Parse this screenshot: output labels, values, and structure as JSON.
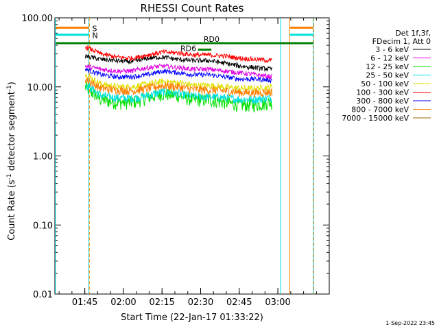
{
  "chart_data": {
    "type": "line",
    "title": "RHESSI Count Rates",
    "xlabel": "Start Time (22-Jan-17 01:33:22)",
    "ylabel_parts": {
      "a": "Count Rate (s",
      "sup1": "-1",
      "b": " detector segment",
      "sup2": "-1",
      "c": ")"
    },
    "y_scale": "log",
    "ylim": [
      0.01,
      100.0
    ],
    "y_ticks": [
      {
        "value": 0.01,
        "label": "0.01"
      },
      {
        "value": 0.1,
        "label": "0.10"
      },
      {
        "value": 1.0,
        "label": "1.00"
      },
      {
        "value": 10.0,
        "label": "10.00"
      },
      {
        "value": 100.0,
        "label": "100.00"
      }
    ],
    "xlim_minutes_after_start": [
      0,
      106.6
    ],
    "x_ticks": [
      {
        "minutes": 11.63,
        "label": "01:45"
      },
      {
        "minutes": 26.63,
        "label": "02:00"
      },
      {
        "minutes": 41.63,
        "label": "02:15"
      },
      {
        "minutes": 56.63,
        "label": "02:30"
      },
      {
        "minutes": 71.63,
        "label": "02:45"
      },
      {
        "minutes": 86.63,
        "label": "03:00"
      }
    ],
    "legend_placement": "right",
    "legend_header": [
      "Det 1f,3f,",
      "FDecim 1, Att 0"
    ],
    "series": [
      {
        "name": "3 - 6 keV",
        "color": "#000000",
        "values": [
          28,
          25,
          24,
          23,
          26,
          27,
          25,
          24,
          24,
          22,
          20,
          19,
          18
        ]
      },
      {
        "name": "6 - 12 keV",
        "color": "#e000e0",
        "values": [
          20,
          18,
          17,
          17,
          19,
          20,
          19,
          18,
          18,
          17,
          16,
          15,
          14
        ]
      },
      {
        "name": "12 - 25 keV",
        "color": "#00e000",
        "values": [
          10,
          6.5,
          6,
          6,
          7,
          8,
          7.5,
          6.5,
          6.5,
          6,
          5.5,
          5.5,
          6
        ]
      },
      {
        "name": "25 - 50 keV",
        "color": "#00e0e0",
        "values": [
          11,
          7.5,
          7,
          6.8,
          7.5,
          8.5,
          8,
          7.3,
          7.2,
          7,
          6.6,
          6.6,
          7
        ]
      },
      {
        "name": "50 - 100 keV",
        "color": "#e0e000",
        "values": [
          15,
          11,
          10,
          10,
          11,
          12,
          11.5,
          10.5,
          10.5,
          10,
          9.5,
          9.5,
          10
        ]
      },
      {
        "name": "100 - 300 keV",
        "color": "#ff0000",
        "values": [
          38,
          30,
          27,
          26,
          29,
          32,
          31,
          29,
          29,
          28,
          26,
          25,
          24
        ]
      },
      {
        "name": "300 - 800 keV",
        "color": "#0000ff",
        "values": [
          18,
          15,
          14,
          14,
          15,
          17,
          16,
          15,
          15,
          14,
          13,
          13,
          12.5
        ]
      },
      {
        "name": "800 - 7000 keV",
        "color": "#ff8000",
        "values": [
          13,
          9.5,
          9,
          8.8,
          9.5,
          10.5,
          10,
          9.2,
          9,
          8.8,
          8.3,
          8.2,
          8.5
        ]
      },
      {
        "name": "7000 - 15000 keV",
        "color": "#a06000",
        "values": []
      }
    ],
    "series_x_minutes": [
      11.8,
      18,
      24,
      30,
      36,
      42,
      48,
      54,
      60,
      66,
      72,
      78,
      84.5
    ],
    "markers": [
      {
        "label": "S",
        "color": "#ff8000",
        "y_value": 72
      },
      {
        "label": "N",
        "color": "#00e0e0",
        "y_value": 57
      }
    ],
    "attenuator_lines": [
      {
        "label": "RD6",
        "y_value": 38
      },
      {
        "label": "RD0",
        "y_value": 47
      }
    ],
    "footer_date": "1-Sep-2022 23:45"
  }
}
